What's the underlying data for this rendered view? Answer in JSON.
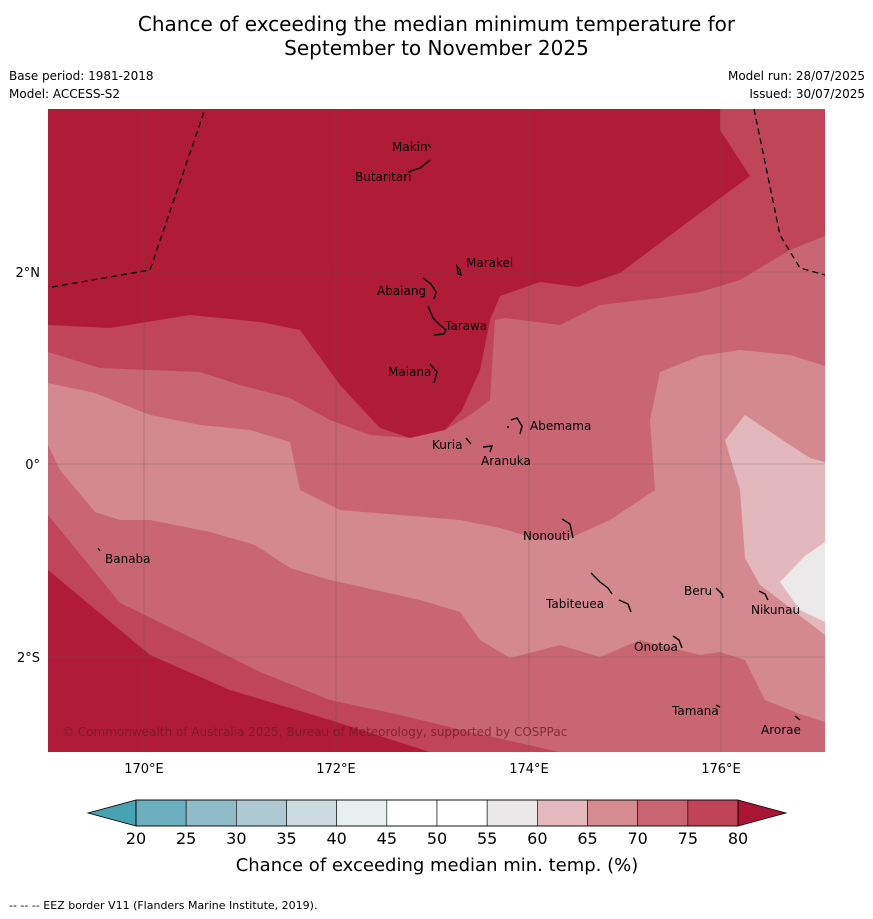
{
  "title": {
    "line1": "Chance of exceeding the median minimum temperature for",
    "line2": "September to November 2025"
  },
  "meta": {
    "base_period": "Base period: 1981-2018",
    "model": "Model: ACCESS-S2",
    "model_run": "Model run: 28/07/2025",
    "issued": "Issued: 30/07/2025"
  },
  "map": {
    "lat_labels": [
      "2°N",
      "0°",
      "2°S"
    ],
    "lon_labels": [
      "170°E",
      "172°E",
      "174°E",
      "176°E"
    ],
    "copyright": "© Commonwealth of Australia 2025, Bureau of Meteorology, supported by COSPPac",
    "islands": [
      "Makin",
      "Butaritari",
      "Marakei",
      "Abaiang",
      "Tarawa",
      "Maiana",
      "Abemama",
      "Kuria",
      "Aranuka",
      "Nonouti",
      "Banaba",
      "Beru",
      "Nikunau",
      "Tabiteuea",
      "Onotoa",
      "Tamana",
      "Arorae"
    ],
    "colors": {
      "c80": "#b01c38",
      "c75": "#c04558",
      "c70": "#c96673",
      "c65": "#d3898f",
      "c60": "#e2b8bd",
      "c55": "#ece9ea"
    }
  },
  "colorbar": {
    "ticks": [
      "20",
      "25",
      "30",
      "35",
      "40",
      "45",
      "50",
      "55",
      "60",
      "65",
      "70",
      "75",
      "80"
    ],
    "label": "Chance of exceeding median min. temp. (%)",
    "colors": [
      "#6bafbf",
      "#8fbcc8",
      "#adcad2",
      "#ccdbdf",
      "#e8eff1",
      "#ffffff",
      "#ffffff",
      "#ebe8e9",
      "#e3b9be",
      "#d58b92",
      "#c96571",
      "#be4456"
    ],
    "low_color": "#47a3b2",
    "high_color": "#a81535"
  },
  "footer": "-- -- -- EEZ border V11 (Flanders Marine Institute, 2019)."
}
